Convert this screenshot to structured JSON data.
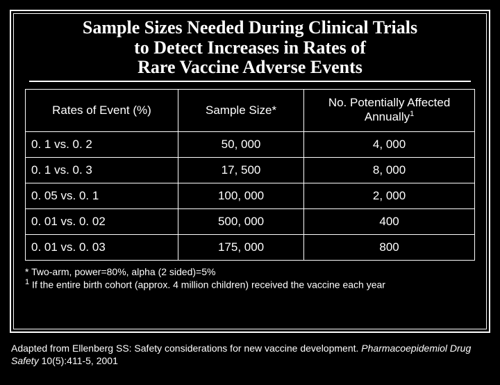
{
  "title_line1": "Sample Sizes Needed During Clinical Trials",
  "title_line2": "to Detect Increases in Rates of",
  "title_line3": "Rare Vaccine Adverse Events",
  "table": {
    "columns": {
      "rates": "Rates of Event (%)",
      "sample": "Sample Size*",
      "affected_pre": "No. Potentially Affected Annually",
      "affected_sup": "1"
    },
    "rows": [
      {
        "rates": "0. 1 vs. 0. 2",
        "sample": "50, 000",
        "affected": "4, 000"
      },
      {
        "rates": "0. 1 vs. 0. 3",
        "sample": "17, 500",
        "affected": "8, 000"
      },
      {
        "rates": "0. 05 vs. 0. 1",
        "sample": "100, 000",
        "affected": "2, 000"
      },
      {
        "rates": "0. 01 vs. 0. 02",
        "sample": "500, 000",
        "affected": "400"
      },
      {
        "rates": "0. 01 vs. 0. 03",
        "sample": "175, 000",
        "affected": "800"
      }
    ],
    "col_widths_pct": [
      34,
      28,
      38
    ],
    "border_color": "#ffffff",
    "background_color": "#000000",
    "font_size": 17
  },
  "footnote_star": "* Two-arm, power=80%, alpha (2 sided)=5%",
  "footnote_1_sup": "1",
  "footnote_1_text": " If the entire birth cohort (approx. 4 million children) received the vaccine each year",
  "citation_pre": "Adapted from Ellenberg SS: Safety considerations for new vaccine development. ",
  "citation_ital": "Pharmacoepidemiol Drug Safety ",
  "citation_post": "10(5):411-5, 2001",
  "colors": {
    "background": "#000000",
    "text": "#ffffff",
    "border": "#ffffff"
  },
  "typography": {
    "title_font": "Times New Roman",
    "title_size_pt": 26,
    "body_font": "Arial",
    "table_size_pt": 17,
    "footnote_size_pt": 14
  }
}
